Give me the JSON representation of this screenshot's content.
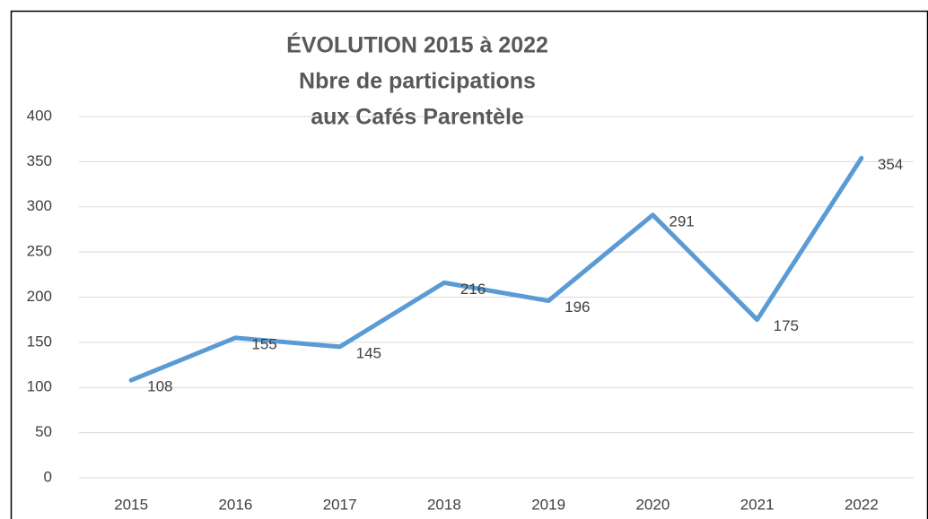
{
  "chart_data": {
    "type": "line",
    "title": [
      "ÉVOLUTION 2015 à 2022",
      "Nbre de participations",
      "aux Cafés Parentèle"
    ],
    "categories": [
      "2015",
      "2016",
      "2017",
      "2018",
      "2019",
      "2020",
      "2021",
      "2022"
    ],
    "series": [
      {
        "name": "Nbre de participations",
        "color": "#5b9bd5",
        "values": [
          108,
          155,
          145,
          216,
          196,
          291,
          175,
          354
        ]
      }
    ],
    "ylim": [
      0,
      400
    ],
    "yticks": [
      0,
      50,
      100,
      150,
      200,
      250,
      300,
      350,
      400
    ],
    "grid": true
  }
}
